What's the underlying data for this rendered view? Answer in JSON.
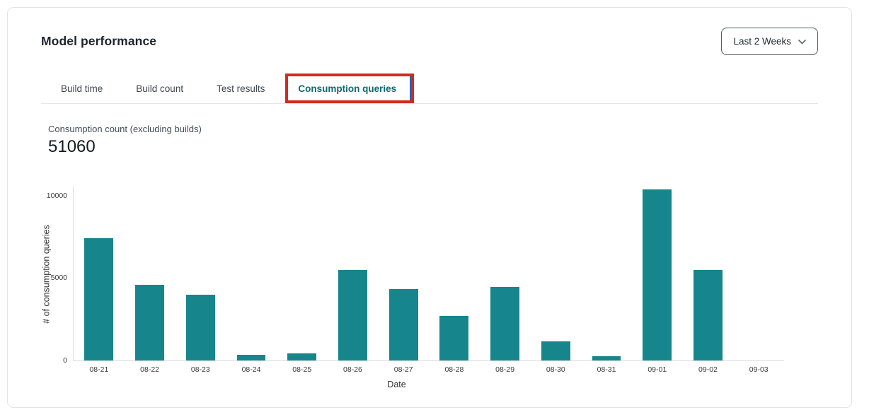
{
  "header": {
    "title": "Model performance"
  },
  "date_range_selector": {
    "value": "Last 2 Weeks"
  },
  "tabs": [
    {
      "label": "Build time",
      "active": false
    },
    {
      "label": "Build count",
      "active": false
    },
    {
      "label": "Test results",
      "active": false
    },
    {
      "label": "Consumption queries",
      "active": true,
      "highlighted_by_annotation": true
    }
  ],
  "annotation": {
    "box_color": "#d22b1f",
    "edge_color": "#2f5da9"
  },
  "metric": {
    "label": "Consumption count (excluding builds)",
    "value": "51060"
  },
  "chart_data": {
    "type": "bar",
    "title": "",
    "categories": [
      "08-21",
      "08-22",
      "08-23",
      "08-24",
      "08-25",
      "08-26",
      "08-27",
      "08-28",
      "08-29",
      "08-30",
      "08-31",
      "09-01",
      "09-02",
      "09-03"
    ],
    "values": [
      7400,
      4600,
      4000,
      330,
      450,
      5480,
      4330,
      2720,
      4450,
      1150,
      250,
      10400,
      5500,
      0
    ],
    "xlabel": "Date",
    "ylabel": "# of consumption queries",
    "ylim": [
      0,
      10550
    ],
    "yticks": [
      0,
      5000,
      10000
    ],
    "grid": false,
    "legend": false,
    "bar_color": "#17868c"
  }
}
